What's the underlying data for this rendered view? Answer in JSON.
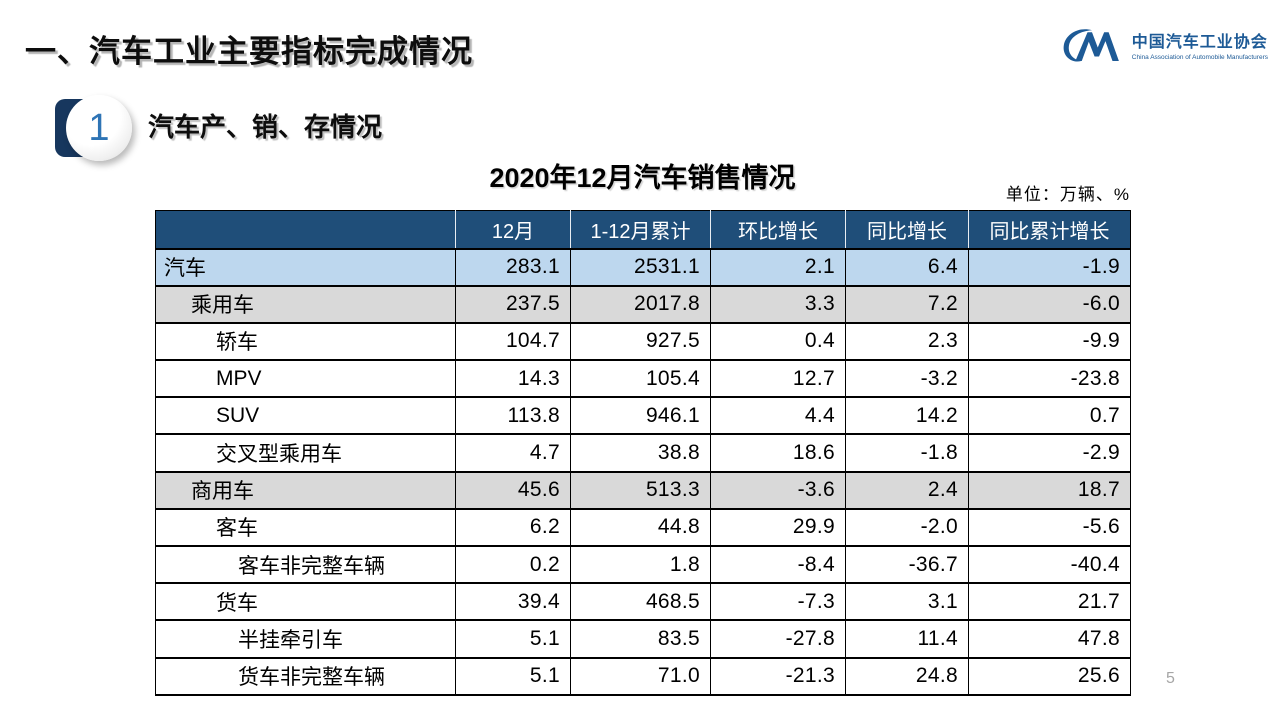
{
  "page": {
    "title": "一、汽车工业主要指标完成情况",
    "page_number": "5"
  },
  "logo": {
    "org_cn": "中国汽车工业协会",
    "org_en": "China Association of Automobile Manufacturers",
    "color": "#1d5a96"
  },
  "section": {
    "badge": "1",
    "title": "汽车产、销、存情况"
  },
  "table": {
    "title": "2020年12月汽车销售情况",
    "unit": "单位：万辆、%",
    "header_bg": "#1f4e79",
    "highlight_blue": "#bdd7ee",
    "highlight_gray": "#d9d9d9",
    "columns": [
      "",
      "12月",
      "1-12月累计",
      "环比增长",
      "同比增长",
      "同比累计增长"
    ],
    "rows": [
      {
        "label": "汽车",
        "indent": 0,
        "bg": "blue",
        "values": [
          "283.1",
          "2531.1",
          "2.1",
          "6.4",
          "-1.9"
        ]
      },
      {
        "label": "乘用车",
        "indent": 1,
        "bg": "gray",
        "values": [
          "237.5",
          "2017.8",
          "3.3",
          "7.2",
          "-6.0"
        ]
      },
      {
        "label": "轿车",
        "indent": 2,
        "bg": "white",
        "values": [
          "104.7",
          "927.5",
          "0.4",
          "2.3",
          "-9.9"
        ]
      },
      {
        "label": "MPV",
        "indent": 2,
        "bg": "white",
        "values": [
          "14.3",
          "105.4",
          "12.7",
          "-3.2",
          "-23.8"
        ]
      },
      {
        "label": "SUV",
        "indent": 2,
        "bg": "white",
        "values": [
          "113.8",
          "946.1",
          "4.4",
          "14.2",
          "0.7"
        ]
      },
      {
        "label": "交叉型乘用车",
        "indent": 2,
        "bg": "white",
        "values": [
          "4.7",
          "38.8",
          "18.6",
          "-1.8",
          "-2.9"
        ]
      },
      {
        "label": "商用车",
        "indent": 1,
        "bg": "gray",
        "values": [
          "45.6",
          "513.3",
          "-3.6",
          "2.4",
          "18.7"
        ]
      },
      {
        "label": "客车",
        "indent": 2,
        "bg": "white",
        "values": [
          "6.2",
          "44.8",
          "29.9",
          "-2.0",
          "-5.6"
        ]
      },
      {
        "label": "客车非完整车辆",
        "indent": 3,
        "bg": "white",
        "values": [
          "0.2",
          "1.8",
          "-8.4",
          "-36.7",
          "-40.4"
        ]
      },
      {
        "label": "货车",
        "indent": 2,
        "bg": "white",
        "values": [
          "39.4",
          "468.5",
          "-7.3",
          "3.1",
          "21.7"
        ]
      },
      {
        "label": "半挂牵引车",
        "indent": 3,
        "bg": "white",
        "values": [
          "5.1",
          "83.5",
          "-27.8",
          "11.4",
          "47.8"
        ]
      },
      {
        "label": "货车非完整车辆",
        "indent": 3,
        "bg": "white",
        "values": [
          "5.1",
          "71.0",
          "-21.3",
          "24.8",
          "25.6"
        ]
      }
    ]
  }
}
